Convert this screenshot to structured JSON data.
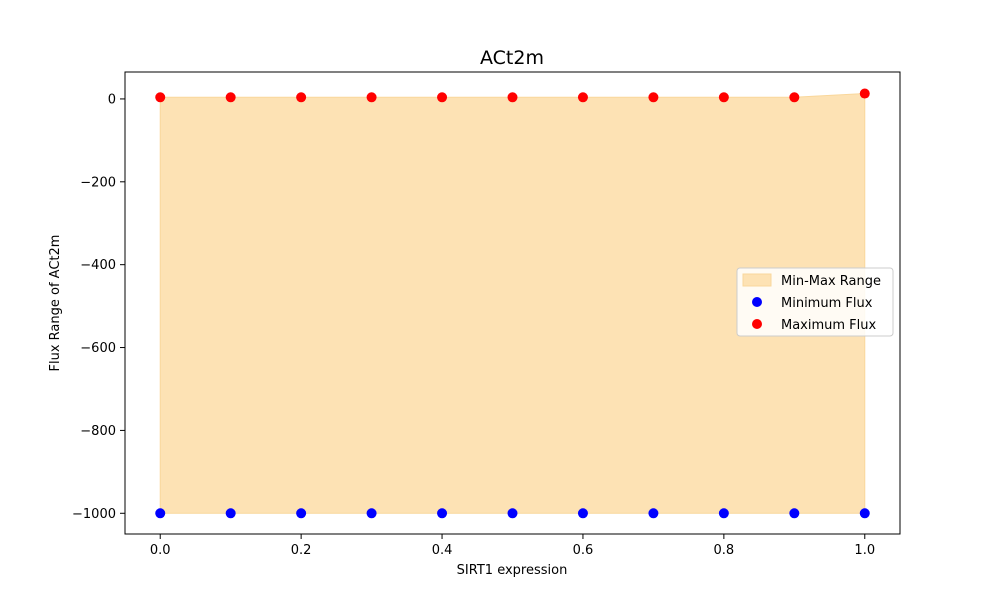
{
  "chart_data": {
    "type": "scatter",
    "title": "ACt2m",
    "xlabel": "SIRT1 expression",
    "ylabel": "Flux Range of ACt2m",
    "xlim": [
      -0.05,
      1.05
    ],
    "ylim": [
      -1050,
      65
    ],
    "x_ticks": [
      0.0,
      0.2,
      0.4,
      0.6,
      0.8,
      1.0
    ],
    "x_tick_labels": [
      "0.0",
      "0.2",
      "0.4",
      "0.6",
      "0.8",
      "1.0"
    ],
    "y_ticks": [
      0,
      -200,
      -400,
      -600,
      -800,
      -1000
    ],
    "y_tick_labels": [
      "0",
      "−200",
      "−400",
      "−600",
      "−800",
      "−1000"
    ],
    "grid": false,
    "legend_position": "center-right",
    "x": [
      0.0,
      0.1,
      0.2,
      0.3,
      0.4,
      0.5,
      0.6,
      0.7,
      0.8,
      0.9,
      1.0
    ],
    "series": [
      {
        "name": "Min-Max Range",
        "kind": "fill",
        "color": "#fde2b4"
      },
      {
        "name": "Minimum Flux",
        "kind": "scatter",
        "color": "#0000ff",
        "values": [
          -1000,
          -1000,
          -1000,
          -1000,
          -1000,
          -1000,
          -1000,
          -1000,
          -1000,
          -1000,
          -1000
        ]
      },
      {
        "name": "Maximum Flux",
        "kind": "scatter",
        "color": "#ff0000",
        "values": [
          4,
          4,
          4,
          4,
          4,
          4,
          4,
          4,
          4,
          4,
          13
        ]
      }
    ]
  }
}
